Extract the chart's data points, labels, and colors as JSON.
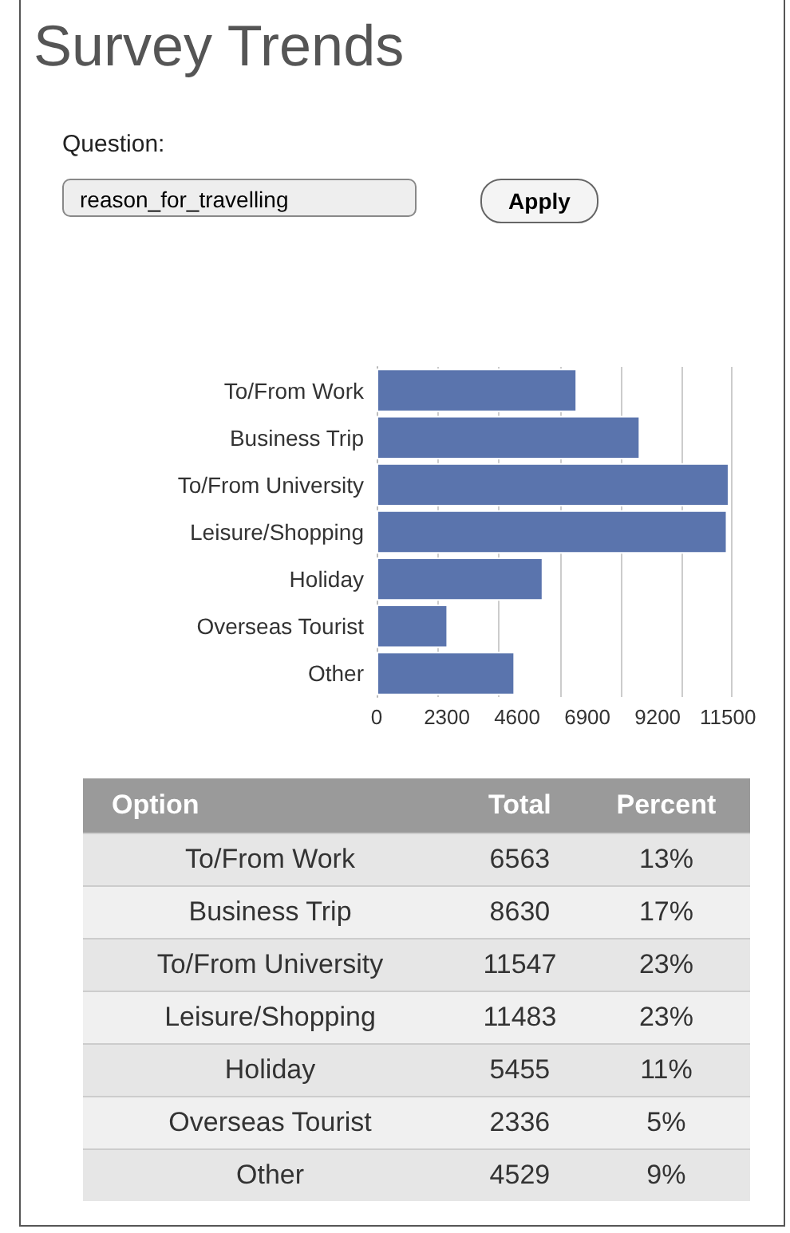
{
  "chart_data": [
    {
      "type": "bar",
      "orientation": "horizontal",
      "title": "Survey Trends",
      "annotations": [
        "Question:",
        "reason_for_travelling",
        "Apply"
      ],
      "categories": [
        "To/From Work",
        "Business Trip",
        "To/From University",
        "Leisure/Shopping",
        "Holiday",
        "Overseas Tourist",
        "Other"
      ],
      "values": [
        6563,
        8630,
        11547,
        11483,
        5455,
        2336,
        4529
      ],
      "color": "#5a74ad",
      "xlim": [
        0,
        11600
      ],
      "xticks": [
        0,
        2300,
        4600,
        6900,
        9200,
        11500
      ],
      "grid": "x"
    },
    {
      "type": "other",
      "annotations": [
        "Option",
        "Total",
        "Percent",
        "To/From Work",
        "6563",
        "13%",
        "Business Trip",
        "8630",
        "17%",
        "To/From University",
        "11547",
        "23%",
        "Leisure/Shopping",
        "11483",
        "23%",
        "Holiday",
        "5455",
        "11%",
        "Overseas Tourist",
        "2336",
        "5%",
        "Other",
        "4529",
        "9%"
      ]
    }
  ]
}
